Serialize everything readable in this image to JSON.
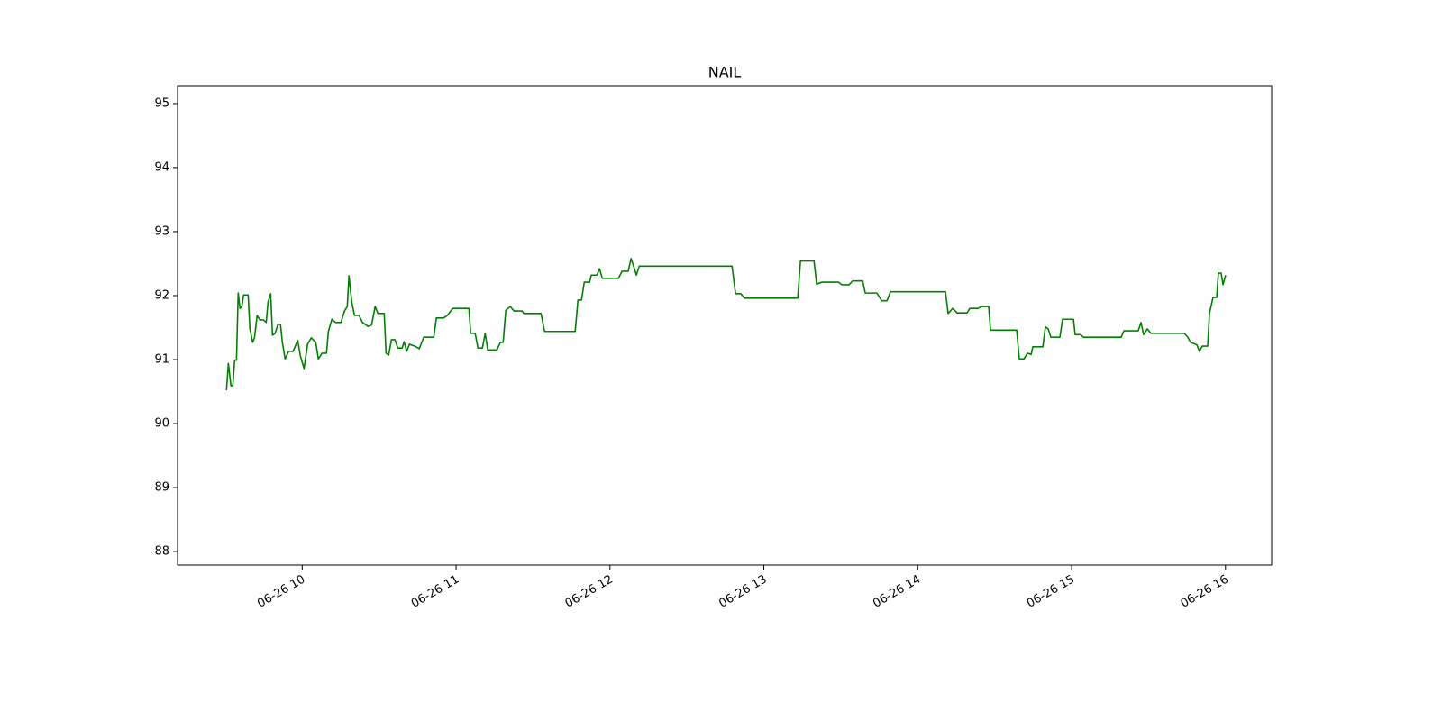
{
  "chart_data": {
    "type": "line",
    "title": "NAIL",
    "xlim": [
      9.19,
      16.3
    ],
    "xticks": [
      {
        "value": 10,
        "label": "06-26 10"
      },
      {
        "value": 11,
        "label": "06-26 11"
      },
      {
        "value": 12,
        "label": "06-26 12"
      },
      {
        "value": 13,
        "label": "06-26 13"
      },
      {
        "value": 14,
        "label": "06-26 14"
      },
      {
        "value": 15,
        "label": "06-26 15"
      },
      {
        "value": 16,
        "label": "06-26 16"
      }
    ],
    "ylim": [
      87.79,
      95.28
    ],
    "yticks": [
      88,
      89,
      90,
      91,
      92,
      93,
      94,
      95
    ],
    "grid": false,
    "series": [
      {
        "color": "#008000",
        "x": [
          9.508,
          9.52,
          9.537,
          9.549,
          9.561,
          9.573,
          9.584,
          9.596,
          9.608,
          9.619,
          9.649,
          9.66,
          9.678,
          9.69,
          9.707,
          9.725,
          9.748,
          9.766,
          9.778,
          9.795,
          9.807,
          9.824,
          9.842,
          9.859,
          9.871,
          9.889,
          9.912,
          9.941,
          9.971,
          9.988,
          10.012,
          10.035,
          10.059,
          10.088,
          10.105,
          10.129,
          10.158,
          10.17,
          10.193,
          10.217,
          10.252,
          10.275,
          10.293,
          10.304,
          10.322,
          10.34,
          10.369,
          10.392,
          10.427,
          10.451,
          10.474,
          10.492,
          10.533,
          10.545,
          10.562,
          10.58,
          10.603,
          10.621,
          10.65,
          10.662,
          10.679,
          10.697,
          10.732,
          10.761,
          10.79,
          10.855,
          10.872,
          10.919,
          10.943,
          10.978,
          11.083,
          11.095,
          11.124,
          11.142,
          11.171,
          11.189,
          11.206,
          11.265,
          11.288,
          11.306,
          11.323,
          11.352,
          11.376,
          11.429,
          11.44,
          11.552,
          11.575,
          11.774,
          11.792,
          11.815,
          11.833,
          11.868,
          11.879,
          11.915,
          11.932,
          11.95,
          12.055,
          12.078,
          12.119,
          12.137,
          12.155,
          12.172,
          12.19,
          12.793,
          12.816,
          12.851,
          12.875,
          13.22,
          13.238,
          13.326,
          13.343,
          13.378,
          13.484,
          13.507,
          13.554,
          13.577,
          13.642,
          13.659,
          13.735,
          13.765,
          13.8,
          13.823,
          14.18,
          14.198,
          14.227,
          14.256,
          14.321,
          14.338,
          14.391,
          14.415,
          14.461,
          14.473,
          14.643,
          14.66,
          14.69,
          14.713,
          14.737,
          14.748,
          14.813,
          14.83,
          14.848,
          14.865,
          14.924,
          14.941,
          15.012,
          15.023,
          15.059,
          15.076,
          15.322,
          15.34,
          15.433,
          15.451,
          15.468,
          15.492,
          15.515,
          15.732,
          15.755,
          15.773,
          15.814,
          15.831,
          15.849,
          15.884,
          15.896,
          15.919,
          15.943,
          15.954,
          15.972,
          15.984,
          16.001
        ],
        "values": [
          90.52,
          90.94,
          90.59,
          90.59,
          90.99,
          90.99,
          92.04,
          91.8,
          91.83,
          92.01,
          92.01,
          91.48,
          91.27,
          91.34,
          91.69,
          91.62,
          91.62,
          91.58,
          91.9,
          92.03,
          91.38,
          91.41,
          91.55,
          91.55,
          91.27,
          91.01,
          91.13,
          91.13,
          91.3,
          91.06,
          90.86,
          91.24,
          91.34,
          91.27,
          91.01,
          91.1,
          91.1,
          91.44,
          91.63,
          91.58,
          91.58,
          91.76,
          91.83,
          92.31,
          91.9,
          91.69,
          91.69,
          91.58,
          91.52,
          91.54,
          91.83,
          91.72,
          91.72,
          91.1,
          91.07,
          91.31,
          91.31,
          91.18,
          91.18,
          91.28,
          91.13,
          91.24,
          91.21,
          91.17,
          91.35,
          91.35,
          91.65,
          91.65,
          91.69,
          91.8,
          91.8,
          91.41,
          91.41,
          91.18,
          91.18,
          91.41,
          91.15,
          91.15,
          91.27,
          91.27,
          91.77,
          91.83,
          91.76,
          91.76,
          91.72,
          91.72,
          91.44,
          91.44,
          91.93,
          91.93,
          92.21,
          92.21,
          92.32,
          92.32,
          92.42,
          92.27,
          92.27,
          92.38,
          92.38,
          92.58,
          92.45,
          92.32,
          92.46,
          92.46,
          92.03,
          92.03,
          91.96,
          91.96,
          92.54,
          92.54,
          92.18,
          92.21,
          92.21,
          92.17,
          92.17,
          92.23,
          92.23,
          92.04,
          92.04,
          91.92,
          91.92,
          92.06,
          92.06,
          91.72,
          91.8,
          91.73,
          91.73,
          91.8,
          91.8,
          91.83,
          91.83,
          91.46,
          91.46,
          91.01,
          91.01,
          91.1,
          91.08,
          91.2,
          91.2,
          91.51,
          91.48,
          91.35,
          91.35,
          91.63,
          91.63,
          91.39,
          91.39,
          91.35,
          91.35,
          91.45,
          91.45,
          91.58,
          91.39,
          91.48,
          91.41,
          91.41,
          91.35,
          91.27,
          91.23,
          91.13,
          91.21,
          91.21,
          91.72,
          91.97,
          91.97,
          92.35,
          92.35,
          92.17,
          92.32
        ]
      }
    ]
  }
}
